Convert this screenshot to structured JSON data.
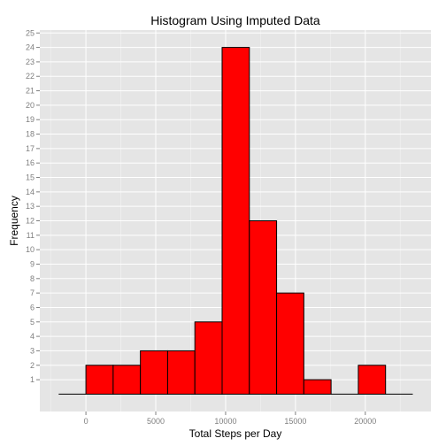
{
  "chart_data": {
    "type": "bar",
    "title": "Histogram Using Imputed Data",
    "xlabel": "Total Steps per Day",
    "ylabel": "Frequency",
    "bin_width": 1950,
    "bins": [
      {
        "x_start": -1950,
        "x_end": 0,
        "count": 0
      },
      {
        "x_start": 0,
        "x_end": 1950,
        "count": 2
      },
      {
        "x_start": 1950,
        "x_end": 3900,
        "count": 2
      },
      {
        "x_start": 3900,
        "x_end": 5850,
        "count": 3
      },
      {
        "x_start": 5850,
        "x_end": 7800,
        "count": 3
      },
      {
        "x_start": 7800,
        "x_end": 9750,
        "count": 5
      },
      {
        "x_start": 9750,
        "x_end": 11700,
        "count": 24
      },
      {
        "x_start": 11700,
        "x_end": 13650,
        "count": 12
      },
      {
        "x_start": 13650,
        "x_end": 15600,
        "count": 7
      },
      {
        "x_start": 15600,
        "x_end": 17550,
        "count": 1
      },
      {
        "x_start": 17550,
        "x_end": 19500,
        "count": 0
      },
      {
        "x_start": 19500,
        "x_end": 21450,
        "count": 2
      },
      {
        "x_start": 21450,
        "x_end": 23400,
        "count": 0
      }
    ],
    "xlim": [
      -3300,
      24700
    ],
    "ylim": [
      -1.2,
      25.2
    ],
    "x_ticks": [
      0,
      5000,
      10000,
      15000,
      20000
    ],
    "x_tick_labels": [
      "0",
      "5000",
      "10000",
      "15000",
      "20000"
    ],
    "y_ticks": [
      1,
      2,
      3,
      4,
      5,
      6,
      7,
      8,
      9,
      10,
      11,
      12,
      13,
      14,
      15,
      16,
      17,
      18,
      19,
      20,
      21,
      22,
      23,
      24,
      25
    ],
    "y_tick_labels": [
      "1",
      "2",
      "3",
      "4",
      "5",
      "6",
      "7",
      "8",
      "9",
      "10",
      "11",
      "12",
      "13",
      "14",
      "15",
      "16",
      "17",
      "18",
      "19",
      "20",
      "21",
      "22",
      "23",
      "24",
      "25"
    ],
    "grid": true,
    "colors": {
      "bar_fill": "#FF0000",
      "bar_stroke": "#000000",
      "panel_background": "#E5E5E5",
      "grid_major": "#FFFFFF",
      "grid_minor": "#F2F2F2",
      "tick_label": "#7F7F7F"
    }
  }
}
